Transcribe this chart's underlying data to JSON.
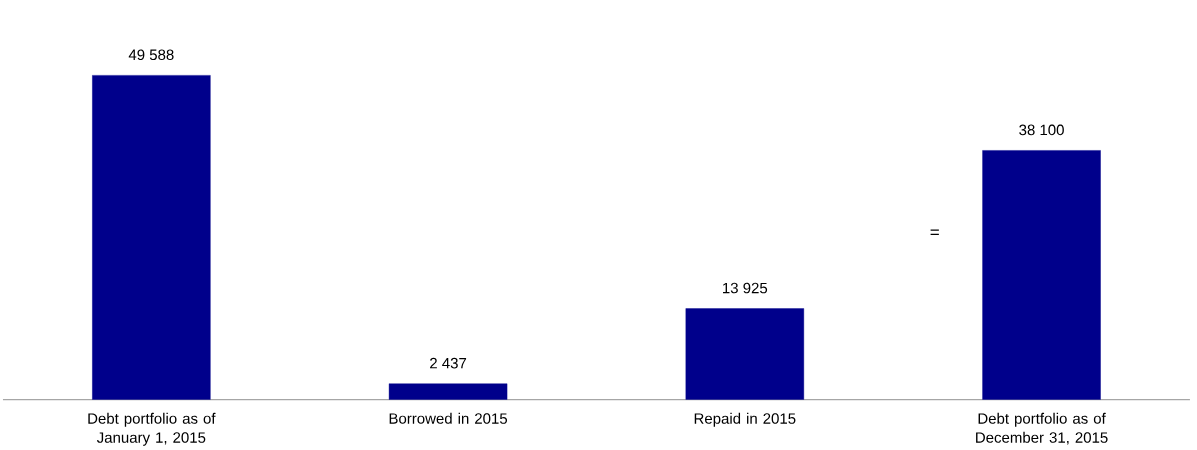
{
  "chart_data": {
    "type": "bar",
    "categories": [
      "Debt portfolio as of January 1, 2015",
      "Borrowed in 2015",
      "Repaid in 2015",
      "Debt portfolio as of December 31, 2015"
    ],
    "values": [
      49588,
      2437,
      13925,
      38100
    ],
    "value_labels": [
      "49 588",
      "2 437",
      "13 925",
      "38 100"
    ],
    "color": "#00008b",
    "annotations": [
      "="
    ]
  }
}
